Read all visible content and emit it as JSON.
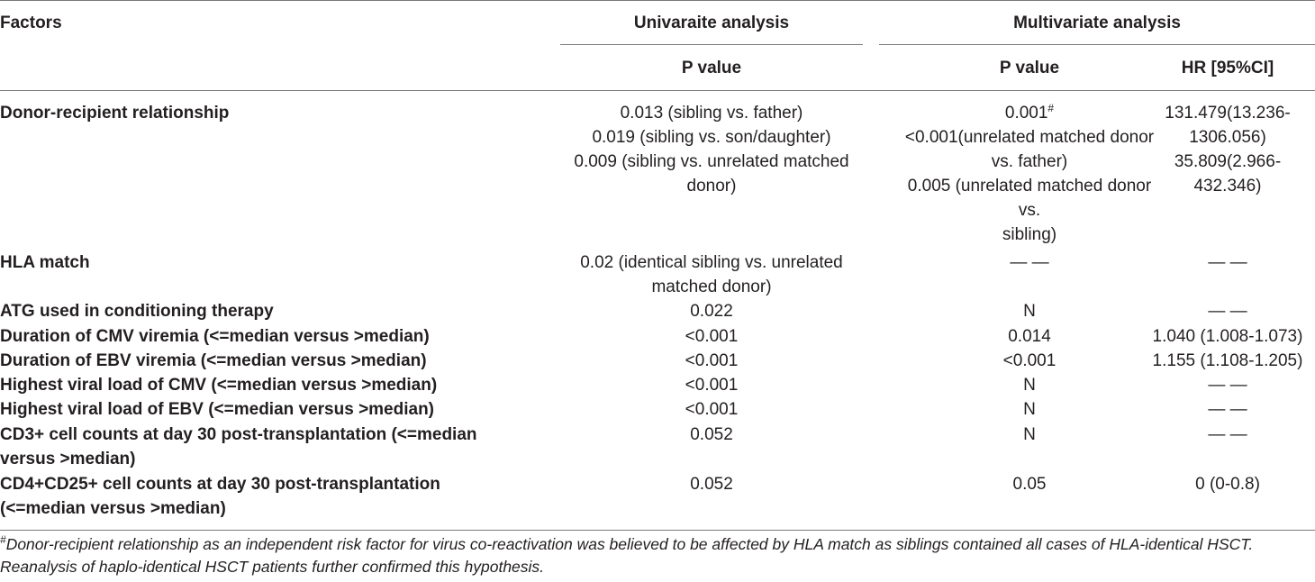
{
  "header": {
    "factors": "Factors",
    "univariate": "Univaraite analysis",
    "multivariate": "Multivariate analysis",
    "uni_p": "P value",
    "multi_p": "P value",
    "multi_hr": "HR [95%CI]"
  },
  "rows": [
    {
      "factor": [
        "Donor-recipient relationship"
      ],
      "uni": [
        "0.013 (sibling vs. father)",
        "0.019 (sibling vs. son/daughter)",
        "0.009 (sibling vs. unrelated matched",
        "donor)"
      ],
      "multi_first": "0.001",
      "multi_sup": "#",
      "multi": [
        "<0.001(unrelated matched donor",
        "vs. father)",
        "0.005 (unrelated matched donor",
        "vs.",
        "sibling)"
      ],
      "hr": [
        "131.479(13.236-",
        "1306.056)",
        "35.809(2.966-",
        "432.346)"
      ]
    },
    {
      "factor": [
        "HLA match"
      ],
      "uni": [
        "0.02 (identical sibling vs. unrelated",
        "matched donor)"
      ],
      "multi": [
        "— —"
      ],
      "hr": [
        "— —"
      ]
    },
    {
      "factor": [
        "ATG used in conditioning therapy"
      ],
      "uni": [
        "0.022"
      ],
      "multi": [
        "N"
      ],
      "hr": [
        "— —"
      ]
    },
    {
      "factor": [
        "Duration of CMV viremia (<=median versus >median)"
      ],
      "uni": [
        "<0.001"
      ],
      "multi": [
        "0.014"
      ],
      "hr": [
        "1.040 (1.008-1.073)"
      ]
    },
    {
      "factor": [
        "Duration of EBV viremia (<=median versus >median)"
      ],
      "uni": [
        "<0.001"
      ],
      "multi": [
        "<0.001"
      ],
      "hr": [
        "1.155 (1.108-1.205)"
      ]
    },
    {
      "factor": [
        "Highest viral load of CMV (<=median versus >median)"
      ],
      "uni": [
        "<0.001"
      ],
      "multi": [
        "N"
      ],
      "hr": [
        "— —"
      ]
    },
    {
      "factor": [
        "Highest viral load of EBV (<=median versus >median)"
      ],
      "uni": [
        "<0.001"
      ],
      "multi": [
        "N"
      ],
      "hr": [
        "— —"
      ]
    },
    {
      "factor": [
        "CD3+ cell counts at day 30 post-transplantation (<=median",
        "versus >median)"
      ],
      "uni": [
        "0.052"
      ],
      "multi": [
        "N"
      ],
      "hr": [
        "— —"
      ]
    },
    {
      "factor": [
        "CD4+CD25+ cell counts at day 30 post-transplantation",
        "(<=median versus >median)"
      ],
      "uni": [
        "0.052"
      ],
      "multi": [
        "0.05"
      ],
      "hr": [
        "0 (0-0.8)"
      ]
    }
  ],
  "footnote": {
    "mark": "#",
    "lines": [
      "Donor-recipient relationship as an independent risk factor for virus co-reactivation was believed to be affected by HLA match as siblings contained all cases of HLA-identical HSCT.",
      "Reanalysis of haplo-identical HSCT patients further confirmed this hypothesis."
    ]
  }
}
